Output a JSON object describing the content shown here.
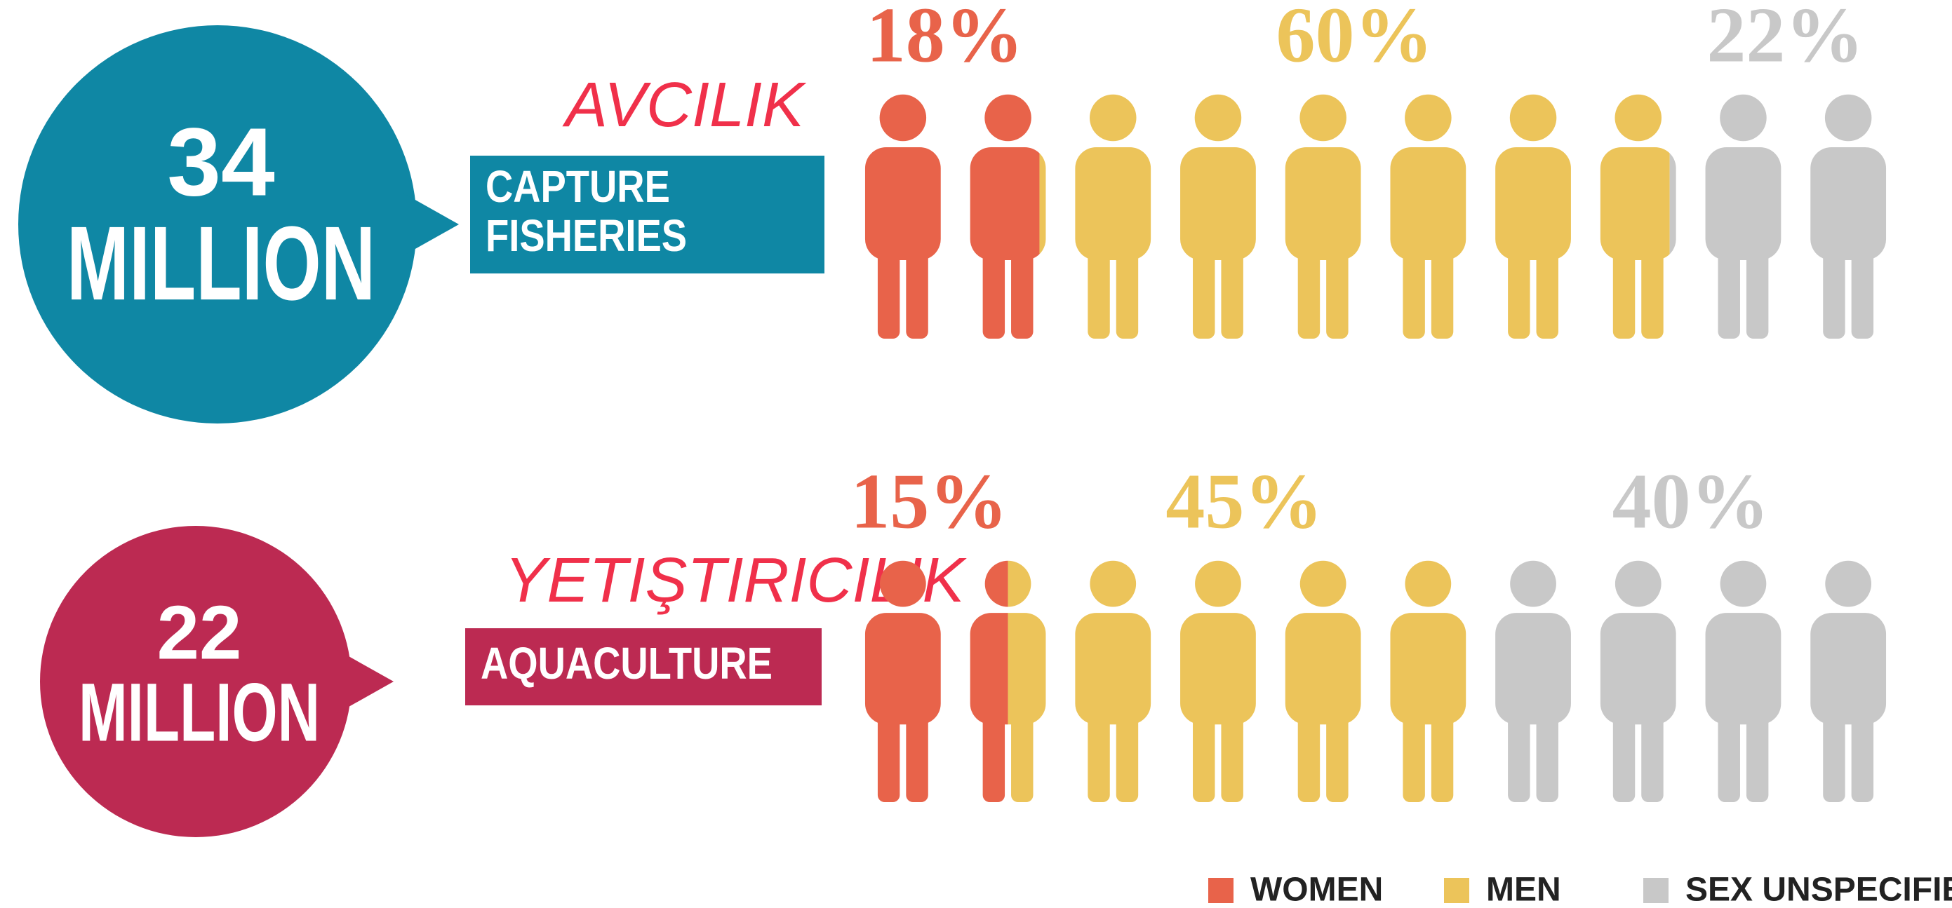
{
  "chart_data": {
    "type": "pictogram",
    "categories": [
      "CAPTURE FISHERIES",
      "AQUACULTURE"
    ],
    "totals": [
      34,
      22
    ],
    "total_unit": "MILLION",
    "category_colors": [
      "#0f87a4",
      "#bc2a52"
    ],
    "annotations": [
      "AVCILIK",
      "YETIŞTIRICILIK"
    ],
    "xlim": [
      0,
      100
    ],
    "series": [
      {
        "name": "WOMEN",
        "color": "#e8634a",
        "values": [
          18,
          15
        ],
        "value_labels": [
          "18%",
          "15%"
        ]
      },
      {
        "name": "MEN",
        "color": "#ecc45a",
        "values": [
          60,
          45
        ],
        "value_labels": [
          "60%",
          "45%"
        ]
      },
      {
        "name": "SEX UNSPECIFIED",
        "color": "#c8c8c8",
        "values": [
          22,
          40
        ],
        "value_labels": [
          "22%",
          "40%"
        ]
      }
    ]
  }
}
